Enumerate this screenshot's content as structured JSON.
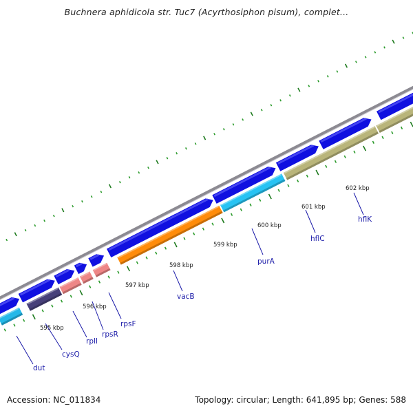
{
  "title": "Buchnera aphidicola str. Tuc7 (Acyrthosiphon pisum), complet...",
  "footer": {
    "accession": "Accession: NC_011834",
    "stats": "Topology: circular; Length: 641,895 bp; Genes: 588"
  },
  "colors": {
    "backbone": "#8c8a92",
    "forward_gene": "#1010e0",
    "tick_major": "#1d7a1d",
    "tick_minor": "#2a9a2a",
    "label": "#1a1aa8"
  },
  "kbp_labels": [
    "595 kbp",
    "596 kbp",
    "597 kbp",
    "598 kbp",
    "599 kbp",
    "600 kbp",
    "601 kbp",
    "602 kbp"
  ],
  "genes": [
    {
      "name": "dut",
      "color": "#25b8e8"
    },
    {
      "name": "cysQ",
      "color": "#47407a"
    },
    {
      "name": "rplI",
      "color": "#ee8686"
    },
    {
      "name": "rpsR",
      "color": "#ee8686"
    },
    {
      "name": "rpsF",
      "color": "#ee8686"
    },
    {
      "name": "vacB",
      "color": "#ff8c0a"
    },
    {
      "name": "purA",
      "color": "#27c3f3"
    },
    {
      "name": "hflC",
      "color": "#b9b57a"
    },
    {
      "name": "hflK",
      "color": "#b9b57a"
    },
    {
      "name": "",
      "color": "#ee8686"
    }
  ]
}
